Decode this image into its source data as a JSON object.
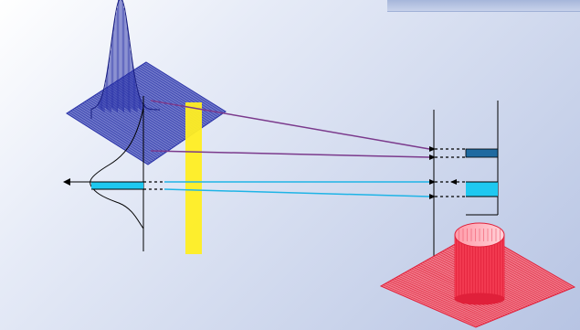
{
  "colors": {
    "background_light": "#ffffff",
    "background_dark": "#b7c4e3",
    "gaussian_mesh": "#2a32a8",
    "cylinder_mesh": "#e0203a",
    "cylinder_base": "#f07a8a",
    "purple_ray": "#7b3a8c",
    "cyan_ray": "#1fb4e6",
    "yellow_band": "#ffee22",
    "dark_blue_bar": "#1f6aa0",
    "light_blue_bar": "#1ec8f0",
    "axis": "#000000"
  },
  "shapes": {
    "gaussian_surface": "gaussian-mesh-surface",
    "cylinder_surface": "cylinder-mesh-surface",
    "profile_curve": "gaussian-profile-curve"
  }
}
